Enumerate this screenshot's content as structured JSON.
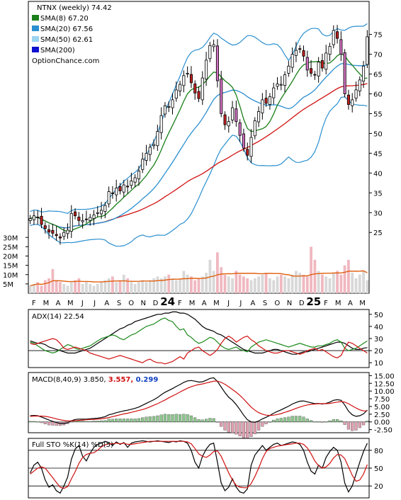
{
  "chart_data": [
    {
      "type": "candlestick",
      "panel": "price",
      "legend": [
        {
          "label": "NTNX (weekly) 74.42",
          "color": ""
        },
        {
          "label": "SMA(8) 67.20",
          "color": "#1a7f1a"
        },
        {
          "label": "SMA(20) 67.56",
          "color": "#2a8fd0"
        },
        {
          "label": "SMA(50) 62.61",
          "color": "#9ad4f0"
        },
        {
          "label": "SMA(200)",
          "color": "#1010d0"
        }
      ],
      "watermark": "OptionChance.com",
      "y_ticks": [
        25,
        30,
        35,
        40,
        45,
        50,
        55,
        60,
        65,
        70,
        75
      ],
      "ylim": [
        20,
        78
      ],
      "close_series": [
        28.5,
        29.2,
        28.7,
        27.0,
        26.0,
        25.1,
        24.8,
        24.2,
        23.6,
        25.0,
        25.6,
        29.8,
        29.2,
        28.0,
        28.0,
        28.3,
        28.8,
        29.4,
        30.0,
        30.6,
        31.8,
        35.3,
        34.8,
        36.2,
        35.5,
        37.0,
        36.5,
        38.0,
        38.8,
        40.5,
        43.5,
        45.0,
        46.5,
        47.2,
        50.5,
        54.5,
        57.0,
        56.8,
        58.5,
        61.0,
        62.4,
        64.6,
        65.2,
        62.8,
        60.2,
        58.8,
        64.0,
        68.5,
        72.2,
        72.4,
        63.3,
        55.0,
        52.2,
        53.0,
        56.5,
        53.0,
        49.5,
        46.3,
        44.5,
        49.0,
        53.2,
        55.5,
        58.5,
        57.6,
        59.3,
        61.5,
        62.5,
        62.4,
        64.8,
        67.0,
        70.0,
        71.0,
        71.2,
        69.5,
        66.0,
        65.2,
        64.8,
        68.0,
        66.5,
        70.3,
        72.0,
        76.0,
        74.0,
        70.0,
        60.0,
        57.3,
        58.5,
        61.0,
        63.5,
        67.0,
        74.4
      ],
      "sma8_last": 67.2,
      "sma20_last": 67.56,
      "sma50_last": 62.61,
      "volume_ticks": [
        "30M",
        "25M",
        "20M",
        "15M",
        "10M",
        "5M"
      ],
      "volume_ylim": [
        0,
        32
      ],
      "volume_series": [
        4,
        5,
        6,
        4,
        7,
        8,
        13,
        7,
        6,
        5,
        4,
        6,
        7,
        8,
        5,
        6,
        5,
        4,
        5,
        6,
        7,
        8,
        9,
        6,
        7,
        10,
        8,
        6,
        5,
        6,
        7,
        6,
        7,
        8,
        9,
        8,
        9,
        10,
        8,
        7,
        8,
        12,
        10,
        9,
        7,
        8,
        9,
        11,
        18,
        12,
        22,
        14,
        10,
        9,
        8,
        12,
        10,
        9,
        8,
        7,
        8,
        9,
        10,
        11,
        8,
        7,
        9,
        10,
        9,
        8,
        10,
        12,
        11,
        10,
        9,
        25,
        18,
        12,
        10,
        9,
        8,
        11,
        12,
        10,
        15,
        18,
        11,
        8,
        10,
        12,
        7
      ],
      "volume_avg_last": 11
    },
    {
      "type": "line",
      "panel": "adx",
      "label": "ADX(14) 22.54",
      "y_ticks": [
        10,
        20,
        30,
        40,
        50
      ],
      "ylim": [
        6,
        54
      ],
      "series": [
        {
          "color": "#000000",
          "values": [
            28,
            27,
            26,
            26,
            25,
            23,
            22,
            21,
            20,
            19,
            18,
            18,
            18,
            19,
            20,
            21,
            22,
            24,
            26,
            28,
            30,
            32,
            34,
            36,
            38,
            39,
            41,
            42,
            44,
            45,
            46,
            47,
            48,
            49,
            50,
            50,
            51,
            51,
            52,
            52,
            51,
            51,
            50,
            48,
            46,
            43,
            40,
            38,
            37,
            36,
            34,
            33,
            31,
            29,
            27,
            25,
            23,
            21,
            20,
            19,
            18,
            18,
            18,
            19,
            20,
            21,
            21,
            20,
            19,
            18,
            17,
            17,
            18,
            19,
            19,
            20,
            21,
            22,
            23,
            24,
            25,
            26,
            27,
            27,
            26,
            24,
            22,
            21,
            21,
            22,
            22.5
          ]
        },
        {
          "color": "#1a8a1a",
          "values": [
            27,
            26,
            24,
            22,
            20,
            19,
            18,
            19,
            21,
            23,
            25,
            24,
            22,
            21,
            22,
            23,
            24,
            26,
            28,
            30,
            31,
            32,
            33,
            32,
            30,
            29,
            31,
            33,
            34,
            36,
            38,
            40,
            41,
            42,
            44,
            46,
            47,
            45,
            44,
            40,
            37,
            38,
            33,
            31,
            28,
            26,
            27,
            29,
            31,
            30,
            27,
            24,
            22,
            21,
            22,
            23,
            21,
            20,
            19,
            23,
            25,
            27,
            28,
            29,
            28,
            27,
            26,
            25,
            24,
            23,
            24,
            25,
            26,
            25,
            24,
            23,
            23,
            24,
            24,
            25,
            26,
            28,
            29,
            27,
            22,
            20,
            21,
            22,
            24,
            26,
            28
          ]
        },
        {
          "color": "#d01010",
          "values": [
            26,
            25,
            26,
            27,
            28,
            29,
            30,
            29,
            26,
            22,
            21,
            22,
            23,
            22,
            21,
            20,
            18,
            17,
            16,
            15,
            14,
            13,
            14,
            15,
            16,
            15,
            14,
            13,
            12,
            11,
            10,
            12,
            13,
            11,
            10,
            10,
            9,
            10,
            11,
            13,
            15,
            13,
            18,
            20,
            22,
            23,
            20,
            18,
            16,
            18,
            21,
            26,
            30,
            32,
            30,
            27,
            29,
            31,
            32,
            29,
            27,
            24,
            22,
            20,
            19,
            18,
            18,
            19,
            20,
            20,
            19,
            18,
            17,
            18,
            20,
            21,
            22,
            20,
            21,
            19,
            17,
            15,
            14,
            16,
            22,
            27,
            26,
            24,
            22,
            20,
            18
          ]
        }
      ]
    },
    {
      "type": "line",
      "panel": "macd",
      "label": "MACD(8,40,9) 3.850,",
      "label_signal": "3.557,",
      "label_hist": "0.299",
      "label_signal_color": "#d01010",
      "label_hist_color": "#1040c0",
      "y_ticks": [
        "15.00",
        "12.50",
        "10.00",
        "7.50",
        "5.00",
        "2.50",
        "0.00",
        "-2.50"
      ],
      "ylim": [
        -3.5,
        16
      ],
      "series": [
        {
          "color": "#000000",
          "values": [
            2.0,
            2.1,
            2.0,
            1.6,
            1.1,
            0.6,
            0.2,
            -0.2,
            -0.5,
            -0.5,
            -0.3,
            0.4,
            0.8,
            0.9,
            0.9,
            0.9,
            1.0,
            1.1,
            1.2,
            1.4,
            1.7,
            2.3,
            2.6,
            3.0,
            3.3,
            3.6,
            3.8,
            4.1,
            4.4,
            4.8,
            5.4,
            6.0,
            6.6,
            7.2,
            7.9,
            8.8,
            9.6,
            10.2,
            10.8,
            11.5,
            12.1,
            12.8,
            13.3,
            13.4,
            13.2,
            12.9,
            13.0,
            13.5,
            14.1,
            14.3,
            13.1,
            11.3,
            9.5,
            8.0,
            7.0,
            5.6,
            4.0,
            2.2,
            0.7,
            0.0,
            -0.1,
            0.3,
            1.0,
            1.5,
            2.1,
            2.8,
            3.4,
            3.9,
            4.5,
            5.1,
            5.8,
            6.3,
            6.7,
            6.8,
            6.5,
            6.2,
            5.9,
            6.0,
            5.8,
            6.0,
            6.4,
            7.0,
            7.2,
            7.0,
            5.5,
            3.5,
            2.3,
            1.8,
            2.0,
            2.6,
            3.85
          ]
        },
        {
          "color": "#d01010",
          "values": [
            1.8,
            1.9,
            1.9,
            1.9,
            1.8,
            1.6,
            1.3,
            1.0,
            0.7,
            0.5,
            0.3,
            0.3,
            0.4,
            0.5,
            0.6,
            0.7,
            0.8,
            0.8,
            0.9,
            1.0,
            1.2,
            1.4,
            1.7,
            2.0,
            2.3,
            2.6,
            2.8,
            3.1,
            3.4,
            3.7,
            4.0,
            4.4,
            4.9,
            5.4,
            5.9,
            6.5,
            7.1,
            7.8,
            8.4,
            9.0,
            9.7,
            10.3,
            10.9,
            11.4,
            11.8,
            12.1,
            12.3,
            12.6,
            12.9,
            13.2,
            13.2,
            12.8,
            12.2,
            11.4,
            10.5,
            9.6,
            8.6,
            7.4,
            6.1,
            4.8,
            3.8,
            3.0,
            2.5,
            2.2,
            2.1,
            2.2,
            2.4,
            2.7,
            3.1,
            3.5,
            3.9,
            4.4,
            4.8,
            5.2,
            5.5,
            5.7,
            5.8,
            5.9,
            5.9,
            5.9,
            6.0,
            6.2,
            6.4,
            6.6,
            6.4,
            5.9,
            5.2,
            4.5,
            3.9,
            3.6,
            3.56
          ]
        }
      ],
      "histogram": [
        0.2,
        0.2,
        0.1,
        -0.3,
        -0.7,
        -1.0,
        -1.1,
        -1.2,
        -1.2,
        -1.0,
        -0.6,
        0.1,
        0.4,
        0.4,
        0.3,
        0.2,
        0.2,
        0.3,
        0.3,
        0.4,
        0.5,
        0.9,
        0.9,
        1.0,
        1.0,
        1.0,
        1.0,
        1.0,
        1.0,
        1.1,
        1.4,
        1.6,
        1.7,
        1.8,
        2.0,
        2.3,
        2.5,
        2.4,
        2.4,
        2.5,
        2.4,
        2.5,
        2.4,
        2.0,
        1.4,
        0.8,
        0.7,
        0.9,
        1.2,
        1.1,
        -0.1,
        -1.5,
        -2.7,
        -3.4,
        -3.5,
        -4.0,
        -4.6,
        -5.2,
        -5.4,
        -4.8,
        -3.9,
        -2.7,
        -1.5,
        -0.7,
        0.0,
        0.6,
        1.0,
        1.2,
        1.4,
        1.6,
        1.9,
        1.9,
        1.9,
        1.6,
        1.0,
        0.5,
        0.1,
        0.1,
        -0.1,
        0.1,
        0.4,
        0.8,
        0.8,
        0.4,
        -0.9,
        -2.4,
        -2.9,
        -2.7,
        -1.9,
        -1.0,
        0.3
      ]
    },
    {
      "type": "line",
      "panel": "stochastic",
      "label": "Full STO %K(14) %D(5)",
      "y_ticks": [
        20,
        50,
        80
      ],
      "ylim": [
        0,
        100
      ],
      "series": [
        {
          "color": "#000000",
          "values": [
            42,
            55,
            60,
            50,
            30,
            18,
            22,
            12,
            8,
            20,
            35,
            65,
            82,
            88,
            70,
            62,
            75,
            85,
            90,
            92,
            95,
            93,
            88,
            94,
            90,
            93,
            85,
            92,
            94,
            95,
            96,
            95,
            94,
            95,
            96,
            95,
            94,
            93,
            95,
            94,
            96,
            95,
            92,
            80,
            60,
            50,
            70,
            82,
            90,
            92,
            60,
            25,
            12,
            18,
            32,
            18,
            10,
            8,
            15,
            55,
            72,
            80,
            88,
            80,
            85,
            90,
            92,
            88,
            90,
            92,
            94,
            93,
            90,
            80,
            60,
            45,
            40,
            55,
            50,
            68,
            78,
            85,
            80,
            60,
            25,
            10,
            20,
            40,
            60,
            78,
            92
          ]
        },
        {
          "color": "#d01010",
          "values": [
            40,
            45,
            50,
            52,
            50,
            42,
            34,
            26,
            18,
            16,
            19,
            32,
            44,
            58,
            68,
            73,
            75,
            76,
            80,
            86,
            89,
            91,
            91,
            92,
            91,
            92,
            90,
            90,
            91,
            92,
            93,
            94,
            95,
            95,
            95,
            95,
            95,
            95,
            95,
            95,
            95,
            95,
            94,
            91,
            83,
            74,
            70,
            68,
            72,
            78,
            79,
            70,
            56,
            42,
            30,
            21,
            18,
            17,
            17,
            24,
            36,
            50,
            66,
            78,
            83,
            85,
            87,
            88,
            89,
            90,
            91,
            92,
            92,
            90,
            84,
            74,
            62,
            54,
            50,
            52,
            58,
            67,
            73,
            72,
            66,
            52,
            38,
            28,
            30,
            40,
            56
          ]
        }
      ]
    }
  ],
  "x_axis": {
    "labels": [
      {
        "text": "F",
        "bold": false
      },
      {
        "text": "M",
        "bold": false
      },
      {
        "text": "A",
        "bold": false
      },
      {
        "text": "M",
        "bold": false
      },
      {
        "text": "J",
        "bold": false
      },
      {
        "text": "J",
        "bold": false
      },
      {
        "text": "A",
        "bold": false
      },
      {
        "text": "S",
        "bold": false
      },
      {
        "text": "O",
        "bold": false
      },
      {
        "text": "N",
        "bold": false
      },
      {
        "text": "D",
        "bold": false
      },
      {
        "text": "24",
        "bold": true
      },
      {
        "text": "F",
        "bold": false
      },
      {
        "text": "M",
        "bold": false
      },
      {
        "text": "A",
        "bold": false
      },
      {
        "text": "M",
        "bold": false
      },
      {
        "text": "J",
        "bold": false
      },
      {
        "text": "J",
        "bold": false
      },
      {
        "text": "A",
        "bold": false
      },
      {
        "text": "S",
        "bold": false
      },
      {
        "text": "O",
        "bold": false
      },
      {
        "text": "N",
        "bold": false
      },
      {
        "text": "D",
        "bold": false
      },
      {
        "text": "25",
        "bold": true
      },
      {
        "text": "F",
        "bold": false
      },
      {
        "text": "M",
        "bold": false
      },
      {
        "text": "A",
        "bold": false
      },
      {
        "text": "M",
        "bold": false
      }
    ]
  }
}
